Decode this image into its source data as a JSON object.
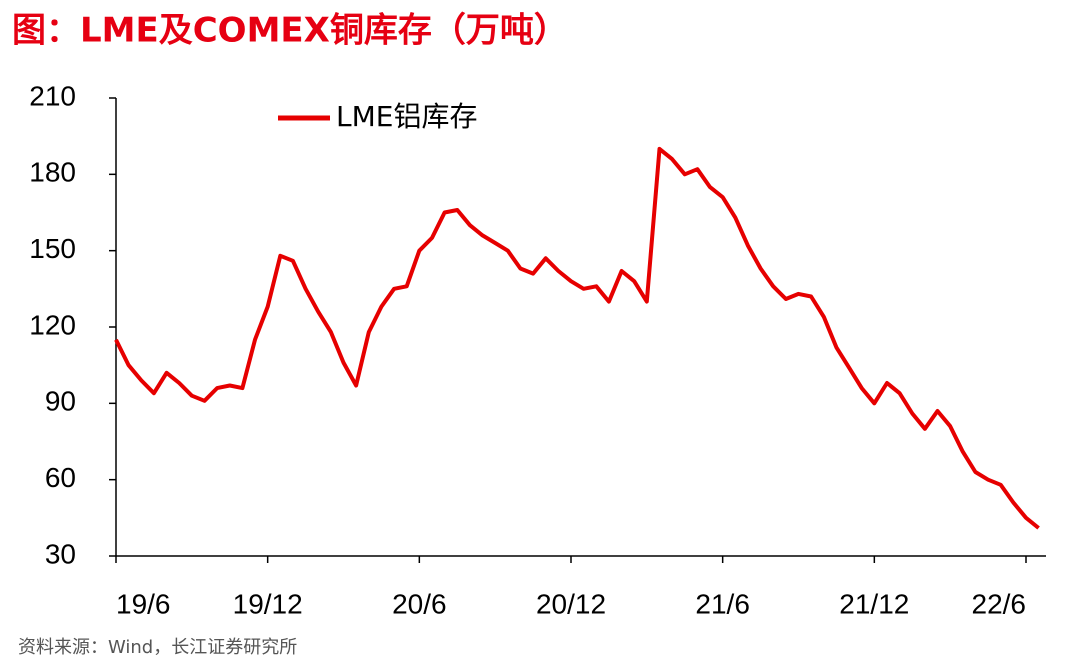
{
  "chart_data": {
    "type": "line",
    "title": "图：LME及COMEX铜库存（万吨）",
    "source": "资料来源：Wind，长江证券研究所",
    "categories": [
      "19/6",
      null,
      null,
      null,
      null,
      null,
      null,
      null,
      null,
      null,
      null,
      null,
      "19/12",
      null,
      null,
      null,
      null,
      null,
      null,
      null,
      null,
      null,
      null,
      null,
      "20/6",
      null,
      null,
      null,
      null,
      null,
      null,
      null,
      null,
      null,
      null,
      null,
      "20/12",
      null,
      null,
      null,
      null,
      null,
      null,
      null,
      null,
      null,
      null,
      null,
      "21/6",
      null,
      null,
      null,
      null,
      null,
      null,
      null,
      null,
      null,
      null,
      null,
      "21/12",
      null,
      null,
      null,
      null,
      null,
      null,
      null,
      null,
      null,
      null,
      null,
      "22/6",
      null
    ],
    "series": [
      {
        "name": "LME铝库存",
        "color": "#e60000",
        "values": [
          115,
          105,
          99,
          94,
          102,
          98,
          93,
          91,
          96,
          97,
          96,
          115,
          128,
          148,
          146,
          135,
          126,
          118,
          106,
          97,
          118,
          128,
          135,
          136,
          150,
          155,
          165,
          166,
          160,
          156,
          153,
          150,
          143,
          141,
          147,
          142,
          138,
          135,
          136,
          130,
          142,
          138,
          130,
          190,
          186,
          180,
          182,
          175,
          171,
          163,
          152,
          143,
          136,
          131,
          133,
          132,
          124,
          112,
          104,
          96,
          90,
          98,
          94,
          86,
          80,
          87,
          81,
          71,
          63,
          60,
          58,
          51,
          45,
          41
        ]
      }
    ],
    "ylim": [
      30,
      210
    ],
    "yticks": [
      30,
      60,
      90,
      120,
      150,
      180,
      210
    ],
    "grid": false,
    "legend": "top"
  }
}
